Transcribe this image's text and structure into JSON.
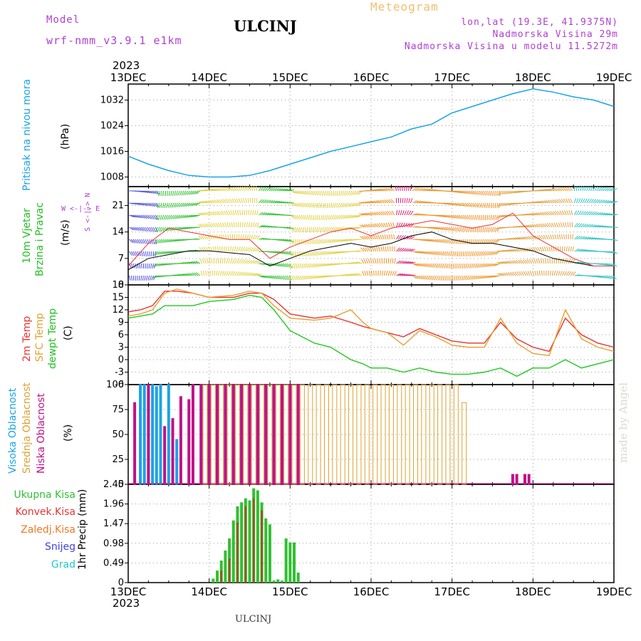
{
  "header": {
    "model_label": "Model",
    "model_value": "wrf-nmm_v3.9.1 e1km",
    "station": "ULCINJ",
    "product": "Meteogram",
    "coords": "lon,lat (19.3E, 41.9375N)",
    "altitude": "Nadmorska Visina 29m",
    "model_altitude": "Nadmorska Visina u modelu 11.5272m",
    "year_top": "2023",
    "year_bottom": "2023",
    "footer": "ULCINJ",
    "credit": "made by Angel"
  },
  "colors": {
    "pressure": "#1aa3e8",
    "temp2m": "#e83232",
    "sfc_temp": "#e8a030",
    "dewpt": "#20c820",
    "cloud_high": "#1aa3e8",
    "cloud_mid": "#e0a030",
    "cloud_low": "#c0108a",
    "precip_total": "#30c030",
    "precip_conv": "#e83232",
    "precip_strat": "#f07820",
    "snow": "#4040e0",
    "hail": "#20c8c8",
    "header_purple": "#b040d0",
    "header_orange": "#f0c070"
  },
  "chart_data": [
    {
      "id": "pressure",
      "type": "line",
      "ylabel_lines": [
        "Pritisak na nivou mora",
        "(hPa)"
      ],
      "x_ticks": [
        "13DEC",
        "14DEC",
        "15DEC",
        "16DEC",
        "17DEC",
        "18DEC",
        "19DEC"
      ],
      "xlim": [
        0,
        6
      ],
      "ylim": [
        1005,
        1037
      ],
      "yticks": [
        1008,
        1016,
        1024,
        1032
      ],
      "grid": true,
      "series": [
        {
          "x": [
            0,
            0.25,
            0.5,
            0.75,
            1,
            1.25,
            1.5,
            1.75,
            2,
            2.25,
            2.5,
            2.75,
            3,
            3.25,
            3.5,
            3.75,
            4,
            4.25,
            4.5,
            4.75,
            5,
            5.25,
            5.5,
            5.75,
            6
          ],
          "y": [
            1014.5,
            1012,
            1010,
            1008.5,
            1008,
            1008,
            1008.5,
            1010,
            1012,
            1014,
            1016,
            1017.5,
            1019,
            1020.5,
            1023,
            1024.5,
            1028,
            1030,
            1032,
            1034,
            1035.5,
            1034.5,
            1033,
            1032,
            1030
          ]
        }
      ]
    },
    {
      "id": "wind",
      "type": "line",
      "ylabel_lines": [
        "10m Vjetar",
        "Brzina i Pravac",
        "(m/s)"
      ],
      "direction_legend": [
        "W <-|-> E",
        "S <-|-> N"
      ],
      "x_ticks": [
        "13DEC",
        "14DEC",
        "15DEC",
        "16DEC",
        "17DEC",
        "18DEC",
        "19DEC"
      ],
      "xlim": [
        0,
        6
      ],
      "ylim": [
        0,
        26
      ],
      "yticks": [
        0,
        7,
        14,
        21
      ],
      "grid": true,
      "series": [
        {
          "x": [
            0,
            0.25,
            0.5,
            0.75,
            1,
            1.25,
            1.5,
            1.75,
            2,
            2.25,
            2.5,
            2.75,
            3,
            3.25,
            3.5,
            3.75,
            4,
            4.25,
            4.5,
            4.75,
            5,
            5.25,
            5.5,
            5.75,
            6
          ],
          "y": [
            4,
            7,
            8,
            9,
            9,
            8.5,
            8,
            5,
            7,
            9,
            10,
            11,
            10,
            11,
            13,
            14,
            12,
            11,
            11,
            10,
            9,
            7,
            6,
            5,
            5
          ]
        },
        {
          "x": [
            0,
            0.25,
            0.5,
            0.75,
            1,
            1.25,
            1.5,
            1.75,
            2,
            2.25,
            2.5,
            2.75,
            3,
            3.25,
            3.5,
            3.75,
            4,
            4.25,
            4.5,
            4.75,
            5,
            5.25,
            5.5,
            5.75,
            6
          ],
          "y": [
            5,
            11,
            15,
            14,
            13,
            12,
            12,
            7,
            10,
            12,
            14,
            15,
            13,
            15,
            16,
            17,
            16,
            15,
            16,
            19,
            13,
            10,
            7,
            5,
            5
          ]
        }
      ]
    },
    {
      "id": "temperature",
      "type": "line",
      "ylabel_lines": [
        "2m Temp",
        "SFC Temp",
        "dewpt Temp",
        "(C)"
      ],
      "x_ticks": [
        "13DEC",
        "14DEC",
        "15DEC",
        "16DEC",
        "17DEC",
        "18DEC",
        "19DEC"
      ],
      "xlim": [
        0,
        6
      ],
      "ylim": [
        -6,
        18
      ],
      "yticks": [
        -6,
        -3,
        0,
        3,
        6,
        9,
        12,
        15,
        18
      ],
      "grid": true,
      "series": [
        {
          "name": "2m Temp",
          "x": [
            0,
            0.15,
            0.3,
            0.45,
            0.6,
            0.8,
            1,
            1.3,
            1.5,
            1.65,
            1.8,
            2,
            2.3,
            2.5,
            2.75,
            2.9,
            3,
            3.2,
            3.4,
            3.6,
            3.8,
            4,
            4.2,
            4.4,
            4.6,
            4.8,
            5,
            5.2,
            5.4,
            5.6,
            5.8,
            6
          ],
          "y": [
            11.5,
            12,
            13,
            16.5,
            16.5,
            16,
            15,
            15,
            16,
            16,
            14.5,
            11,
            10,
            10.5,
            9,
            8,
            7.5,
            6.5,
            5.5,
            7.5,
            6,
            4.5,
            4,
            4,
            9,
            5,
            3,
            2,
            10,
            6,
            4,
            3
          ]
        },
        {
          "name": "SFC Temp",
          "x": [
            0,
            0.15,
            0.3,
            0.45,
            0.6,
            0.8,
            1,
            1.3,
            1.5,
            1.65,
            1.8,
            2,
            2.3,
            2.5,
            2.75,
            2.9,
            3,
            3.2,
            3.4,
            3.6,
            3.8,
            4,
            4.2,
            4.4,
            4.6,
            4.8,
            5,
            5.2,
            5.4,
            5.6,
            5.8,
            6
          ],
          "y": [
            10.5,
            11,
            12,
            16,
            17,
            16,
            15,
            15.5,
            16.5,
            16,
            13,
            10,
            9.5,
            10,
            12,
            9,
            7.5,
            6.5,
            3.5,
            7,
            5.5,
            3.5,
            3,
            3,
            10,
            4,
            1.5,
            1,
            12,
            5,
            3,
            2
          ]
        },
        {
          "name": "dewpt Temp",
          "x": [
            0,
            0.15,
            0.3,
            0.45,
            0.6,
            0.8,
            1,
            1.3,
            1.5,
            1.65,
            1.8,
            2,
            2.3,
            2.5,
            2.75,
            2.9,
            3,
            3.2,
            3.4,
            3.6,
            3.8,
            4,
            4.2,
            4.4,
            4.6,
            4.8,
            5,
            5.2,
            5.4,
            5.6,
            5.8,
            6
          ],
          "y": [
            10,
            10.5,
            11,
            13,
            13,
            13,
            14,
            14.5,
            15.5,
            15,
            12,
            7,
            4,
            3,
            0,
            -1,
            -2,
            -2,
            -3,
            -2,
            -3,
            -3.5,
            -3.5,
            -3,
            -2,
            -4,
            -2,
            -2,
            0,
            -2,
            -1,
            0
          ]
        }
      ]
    },
    {
      "id": "clouds",
      "type": "bar",
      "ylabel_lines": [
        "Visoka Oblacnost",
        "Srednja Oblacnost",
        "Niska Oblacnost",
        "(%)"
      ],
      "x_ticks": [
        "13DEC",
        "14DEC",
        "15DEC",
        "16DEC",
        "17DEC",
        "18DEC",
        "19DEC"
      ],
      "xlim": [
        0,
        6
      ],
      "ylim": [
        0,
        100
      ],
      "yticks": [
        0,
        25,
        50,
        75,
        100
      ],
      "grid": true,
      "series": [
        {
          "name": "Visoka Oblacnost",
          "x": [
            0.15,
            0.2,
            0.25,
            0.3,
            0.35,
            0.4,
            0.5,
            0.6,
            0.9,
            1.0,
            1.1,
            1.2,
            1.3,
            1.4,
            1.5,
            1.6,
            1.7,
            1.8,
            1.9,
            2.0
          ],
          "y": [
            100,
            100,
            100,
            100,
            98,
            100,
            100,
            45,
            100,
            100,
            100,
            100,
            100,
            100,
            100,
            100,
            100,
            100,
            90,
            10
          ]
        },
        {
          "name": "Srednja Oblacnost",
          "x": [
            0.95,
            1.05,
            1.15,
            1.25,
            1.35,
            1.45,
            1.55,
            1.65,
            1.75,
            1.85,
            1.95,
            2.05,
            2.15,
            2.25,
            2.35,
            2.45,
            2.55,
            2.65,
            2.75,
            2.85,
            2.95,
            3.05,
            3.15,
            3.25,
            3.35,
            3.45,
            3.55,
            3.65,
            3.75,
            3.85,
            3.95,
            4.05,
            4.15
          ],
          "y": [
            100,
            100,
            100,
            100,
            100,
            100,
            100,
            100,
            100,
            100,
            100,
            100,
            100,
            100,
            100,
            100,
            100,
            100,
            100,
            100,
            100,
            100,
            100,
            100,
            100,
            100,
            100,
            100,
            100,
            100,
            100,
            100,
            82
          ]
        },
        {
          "name": "Niska Oblacnost",
          "x": [
            0.08,
            0.25,
            0.45,
            0.55,
            0.65,
            0.75,
            0.8,
            0.9,
            1.0,
            1.1,
            1.2,
            1.3,
            1.4,
            1.5,
            1.6,
            1.7,
            1.8,
            1.9,
            2.0,
            2.1,
            4.75,
            4.8,
            4.9,
            4.95
          ],
          "y": [
            82,
            100,
            58,
            66,
            88,
            85,
            100,
            100,
            100,
            100,
            100,
            100,
            100,
            100,
            100,
            100,
            100,
            100,
            100,
            100,
            10,
            10,
            10,
            10
          ]
        }
      ]
    },
    {
      "id": "precip",
      "type": "bar",
      "ylabel_lines": [
        "1hr Precip (mm)"
      ],
      "legend": [
        "Ukupna Kisa",
        "Konvek.Kisa",
        "Zaledj.Kisa",
        "Snijeg",
        "Grad"
      ],
      "x_ticks": [
        "13DEC",
        "14DEC",
        "15DEC",
        "16DEC",
        "17DEC",
        "18DEC",
        "19DEC"
      ],
      "xlim": [
        0,
        6
      ],
      "ylim": [
        0,
        2.45
      ],
      "yticks": [
        0,
        0.49,
        0.98,
        1.47,
        1.96,
        2.45
      ],
      "grid": true,
      "series": [
        {
          "name": "Ukupna Kisa",
          "x": [
            1.05,
            1.1,
            1.15,
            1.2,
            1.25,
            1.3,
            1.35,
            1.4,
            1.45,
            1.5,
            1.55,
            1.6,
            1.65,
            1.7,
            1.75,
            1.8,
            1.85,
            1.9,
            1.95,
            2.0,
            2.05,
            2.1
          ],
          "y": [
            0.1,
            0.3,
            0.55,
            0.8,
            1.1,
            1.55,
            1.9,
            2.0,
            2.1,
            2.05,
            2.35,
            2.3,
            2.0,
            1.6,
            1.45,
            0.05,
            0.08,
            0.05,
            1.1,
            1.0,
            1.0,
            0.25
          ]
        },
        {
          "name": "Konvek.Kisa",
          "x": [
            1.15,
            1.25,
            1.35,
            1.45,
            1.55,
            1.65
          ],
          "y": [
            0.3,
            0.6,
            1.5,
            1.9,
            2.1,
            1.8
          ]
        }
      ]
    }
  ]
}
